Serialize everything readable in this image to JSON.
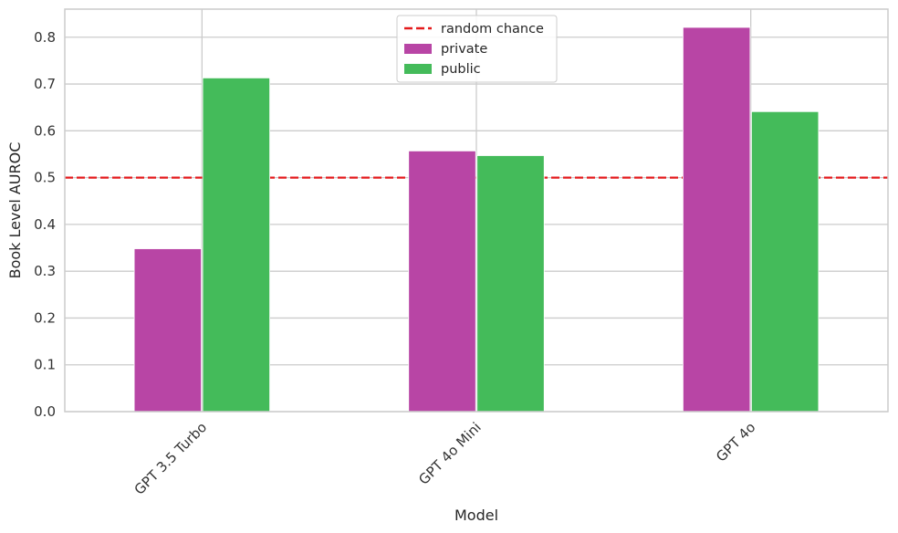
{
  "chart_data": {
    "type": "bar",
    "title": "",
    "xlabel": "Model",
    "ylabel": "Book Level AUROC",
    "categories": [
      "GPT 3.5 Turbo",
      "GPT 4o Mini",
      "GPT 4o"
    ],
    "series": [
      {
        "name": "private",
        "values": [
          0.348,
          0.557,
          0.821
        ],
        "color": "#b845a5"
      },
      {
        "name": "public",
        "values": [
          0.713,
          0.547,
          0.641
        ],
        "color": "#44bb5a"
      }
    ],
    "ylim": [
      0,
      0.86
    ],
    "yticks": [
      "0.0",
      "0.1",
      "0.2",
      "0.3",
      "0.4",
      "0.5",
      "0.6",
      "0.7",
      "0.8"
    ],
    "reference_line": {
      "name": "random chance",
      "value": 0.5,
      "color": "#e41a1c",
      "style": "dashed"
    },
    "grid": true,
    "legend_position": "top-center"
  }
}
